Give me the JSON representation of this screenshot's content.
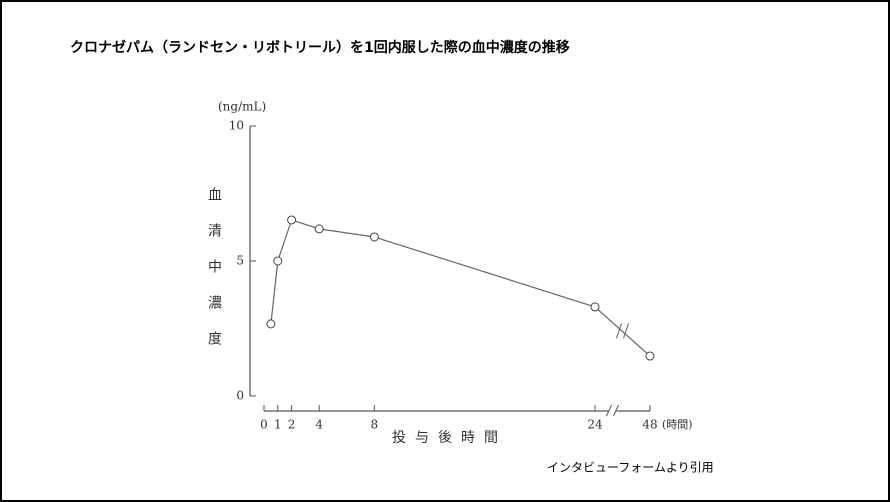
{
  "chart_data": {
    "type": "line",
    "title": "クロナゼパム（ランドセン・リボトリール）を1回内服した際の血中濃度の推移",
    "y_label": "血清中濃度",
    "y_unit": "(ng/mL)",
    "x_label": "投与後時間",
    "x_unit": "(時間)",
    "source": "インタビューフォームより引用",
    "axis_break": true,
    "x": [
      0.5,
      1,
      2,
      4,
      8,
      24,
      48
    ],
    "series": [
      {
        "name": "クロナゼパム",
        "color": "#666666",
        "values": [
          2.67,
          5.0,
          6.52,
          6.19,
          5.89,
          3.3,
          1.48
        ]
      }
    ],
    "xlim": [
      0,
      48
    ],
    "xticks": [
      0,
      1,
      2,
      4,
      8,
      24,
      48
    ],
    "ylim": [
      0,
      10
    ],
    "yticks": [
      0,
      5,
      10
    ]
  }
}
